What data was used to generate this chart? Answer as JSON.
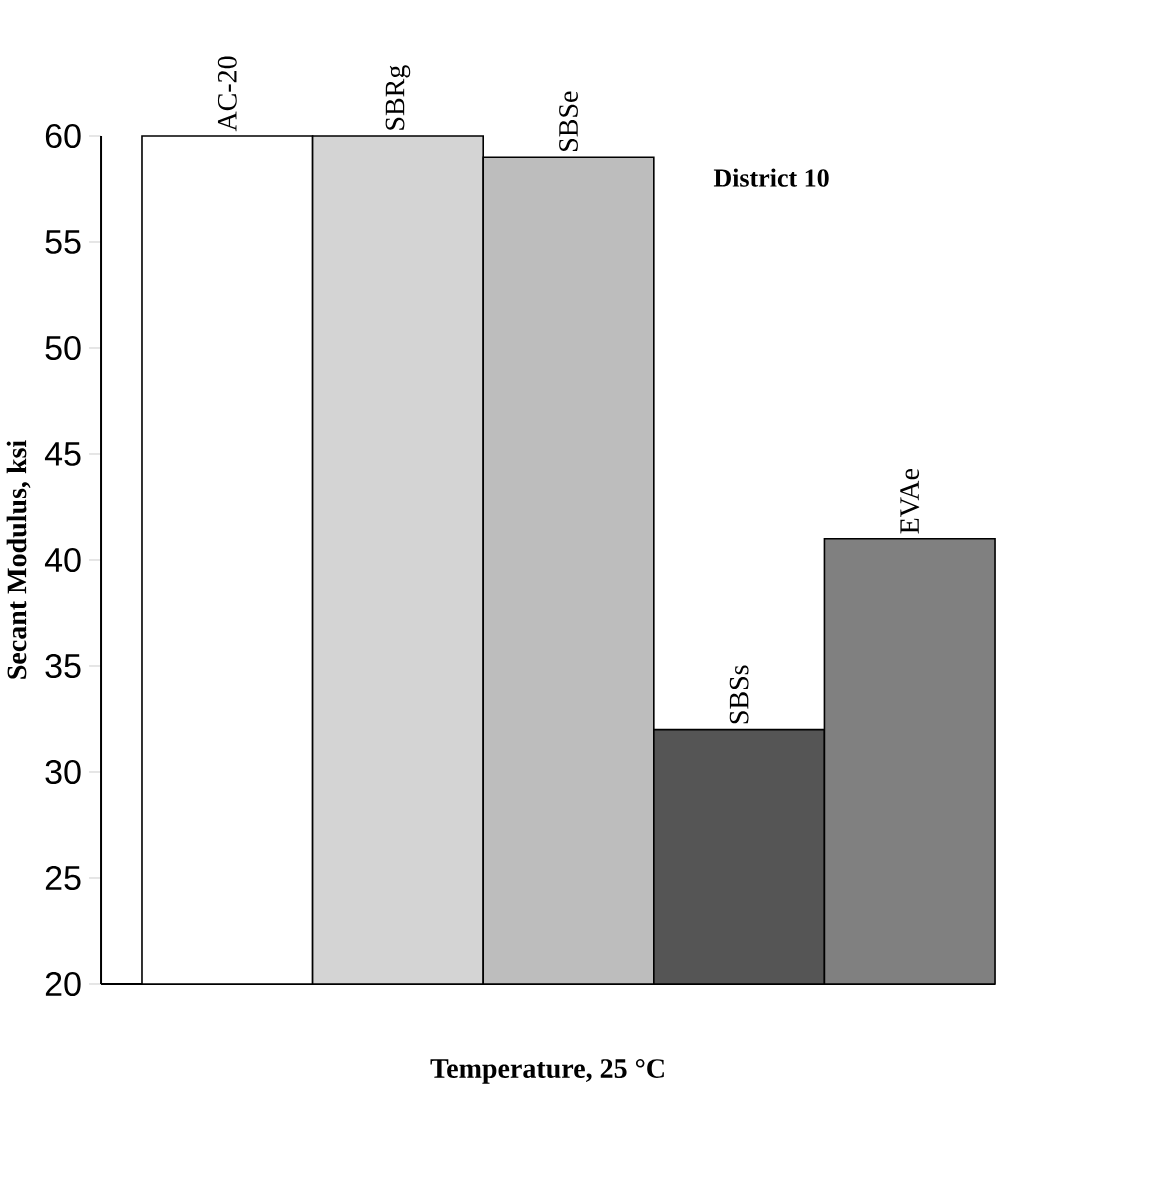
{
  "chart_data": {
    "type": "bar",
    "xlabel": "Temperature, 25 °C",
    "ylabel": "Secant Modulus, ksi",
    "categories": [
      "AC-20",
      "SBRg",
      "SBSe",
      "SBSs",
      "EVAe"
    ],
    "values": [
      60,
      60,
      59,
      32,
      41
    ],
    "colors": [
      "#ffffff",
      "#d4d4d4",
      "#bdbdbd",
      "#555555",
      "#808080"
    ],
    "ylim": [
      20,
      60
    ],
    "yticks": [
      20,
      25,
      30,
      35,
      40,
      45,
      50,
      55,
      60
    ],
    "annotations": [
      "District 10"
    ]
  }
}
